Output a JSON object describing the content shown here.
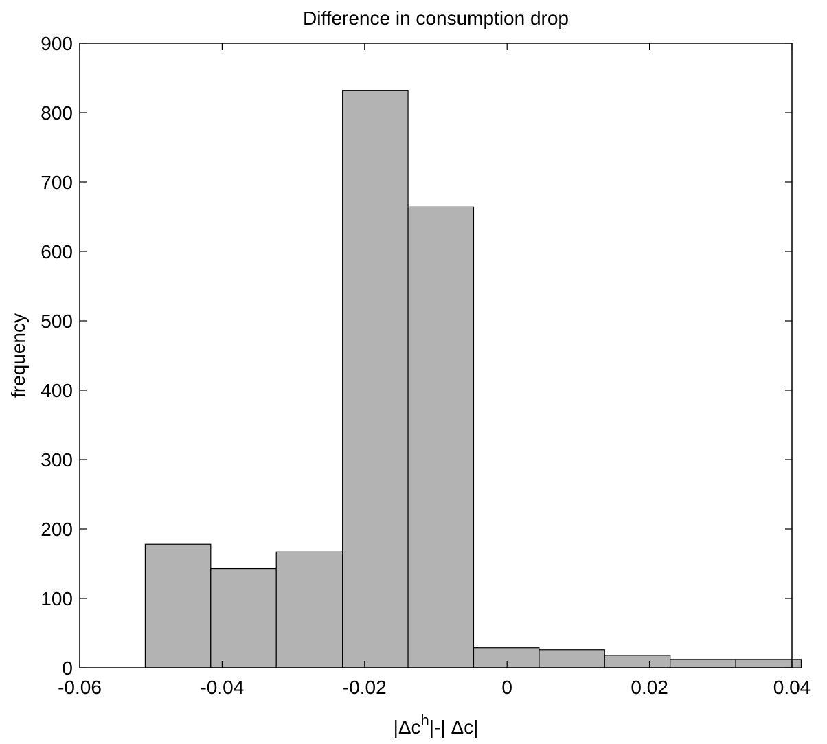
{
  "chart_data": {
    "type": "bar",
    "title": "Difference in consumption drop",
    "xlabel": "|Δc^h|-| Δc|",
    "xlabel_parts": {
      "pre": "|Δc",
      "sup": "h",
      "post": "|-| Δc|"
    },
    "ylabel": "frequency",
    "xlim": [
      -0.06,
      0.04
    ],
    "ylim": [
      0,
      900
    ],
    "xticks": [
      -0.06,
      -0.04,
      -0.02,
      0,
      0.02,
      0.04
    ],
    "xtick_labels": [
      "-0.06",
      "-0.04",
      "-0.02",
      "0",
      "0.02",
      "0.04"
    ],
    "yticks": [
      0,
      100,
      200,
      300,
      400,
      500,
      600,
      700,
      800,
      900
    ],
    "ytick_labels": [
      "0",
      "100",
      "200",
      "300",
      "400",
      "500",
      "600",
      "700",
      "800",
      "900"
    ],
    "bin_edges": [
      -0.0508,
      -0.0416,
      -0.0324,
      -0.0231,
      -0.0139,
      -0.0047,
      0.0045,
      0.0137,
      0.0229,
      0.0321,
      0.0413
    ],
    "values": [
      178,
      143,
      167,
      832,
      664,
      29,
      26,
      18,
      12,
      12
    ],
    "bar_color": "#b3b3b3",
    "grid": false
  }
}
